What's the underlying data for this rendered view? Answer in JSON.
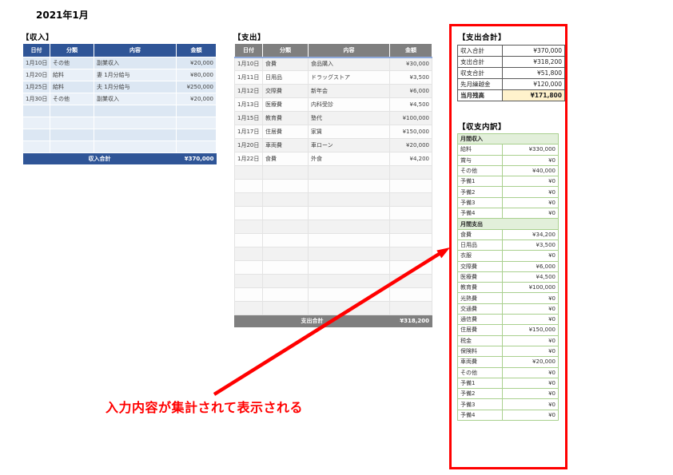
{
  "page": {
    "title": "2021年1月"
  },
  "colors": {
    "income_header": "#2F5597",
    "income_row": "#DCE7F3",
    "expense_header": "#7F7F7F",
    "expense_row": "#F2F2F2",
    "annotation_red": "#FF0000",
    "highlight_cell": "#FFF2CC",
    "breakdown_header_bg": "#E2EFDA",
    "breakdown_border": "#A9D08E"
  },
  "income_table": {
    "section_label": "【収入】",
    "columns": [
      "日付",
      "分類",
      "内容",
      "金額"
    ],
    "rows": [
      [
        "1月10日",
        "その他",
        "副業収入",
        "¥20,000"
      ],
      [
        "1月20日",
        "給料",
        "妻 1月分給与",
        "¥80,000"
      ],
      [
        "1月25日",
        "給料",
        "夫 1月分給与",
        "¥250,000"
      ],
      [
        "1月30日",
        "その他",
        "副業収入",
        "¥20,000"
      ]
    ],
    "empty_rows": 4,
    "footer_label": "収入合計",
    "footer_amount": "¥370,000"
  },
  "expense_table": {
    "section_label": "【支出】",
    "columns": [
      "日付",
      "分類",
      "内容",
      "金額"
    ],
    "rows": [
      [
        "1月10日",
        "食費",
        "食品購入",
        "¥30,000"
      ],
      [
        "1月11日",
        "日用品",
        "ドラッグストア",
        "¥3,500"
      ],
      [
        "1月12日",
        "交際費",
        "新年会",
        "¥6,000"
      ],
      [
        "1月13日",
        "医療費",
        "内科受診",
        "¥4,500"
      ],
      [
        "1月15日",
        "教育費",
        "塾代",
        "¥100,000"
      ],
      [
        "1月17日",
        "住居費",
        "家賃",
        "¥150,000"
      ],
      [
        "1月20日",
        "車両費",
        "車ローン",
        "¥20,000"
      ],
      [
        "1月22日",
        "食費",
        "外食",
        "¥4,200"
      ]
    ],
    "empty_rows": 11,
    "footer_label": "支出合計",
    "footer_amount": "¥318,200"
  },
  "totals_panel": {
    "section_label": "【支出合計】",
    "rows": [
      {
        "label": "収入合計",
        "value": "¥370,000",
        "highlight": false
      },
      {
        "label": "支出合計",
        "value": "¥318,200",
        "highlight": false
      },
      {
        "label": "収支合計",
        "value": "¥51,800",
        "highlight": false
      },
      {
        "label": "先月繰越金",
        "value": "¥120,000",
        "highlight": false
      },
      {
        "label": "当月残高",
        "value": "¥171,800",
        "highlight": true
      }
    ]
  },
  "breakdown_panel": {
    "section_label": "【収支内訳】",
    "groups": [
      {
        "header": "月間収入",
        "rows": [
          [
            "給料",
            "¥330,000"
          ],
          [
            "賞与",
            "¥0"
          ],
          [
            "その他",
            "¥40,000"
          ],
          [
            "予備1",
            "¥0"
          ],
          [
            "予備2",
            "¥0"
          ],
          [
            "予備3",
            "¥0"
          ],
          [
            "予備4",
            "¥0"
          ]
        ]
      },
      {
        "header": "月間支出",
        "rows": [
          [
            "食費",
            "¥34,200"
          ],
          [
            "日用品",
            "¥3,500"
          ],
          [
            "衣服",
            "¥0"
          ],
          [
            "交際費",
            "¥6,000"
          ],
          [
            "医療費",
            "¥4,500"
          ],
          [
            "教育費",
            "¥100,000"
          ],
          [
            "光熱費",
            "¥0"
          ],
          [
            "交通費",
            "¥0"
          ],
          [
            "通信費",
            "¥0"
          ],
          [
            "住居費",
            "¥150,000"
          ],
          [
            "税金",
            "¥0"
          ],
          [
            "保険料",
            "¥0"
          ],
          [
            "車両費",
            "¥20,000"
          ],
          [
            "その他",
            "¥0"
          ],
          [
            "予備1",
            "¥0"
          ],
          [
            "予備2",
            "¥0"
          ],
          [
            "予備3",
            "¥0"
          ],
          [
            "予備4",
            "¥0"
          ]
        ]
      }
    ]
  },
  "annotation": {
    "text": "入力内容が集計されて表示される"
  }
}
